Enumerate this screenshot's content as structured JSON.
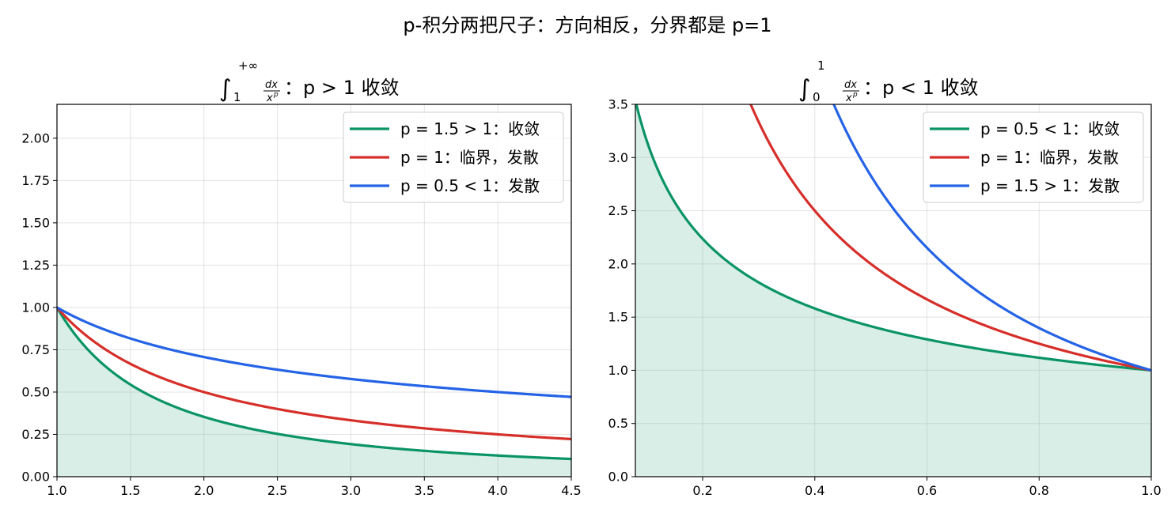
{
  "suptitle": "p-积分两把尺子：方向相反，分界都是 p=1",
  "colors": {
    "green": "#0a9464",
    "red": "#d62f2a",
    "blue": "#2563e6",
    "fill": "#d8eee6"
  },
  "chart_data": [
    {
      "type": "line",
      "title": {
        "integral_lower": "1",
        "integral_upper": "+∞",
        "frac_num": "dx",
        "frac_den": "x",
        "frac_den_exp": "p",
        "condition": "：p > 1 收敛"
      },
      "xlim": [
        1.0,
        4.5
      ],
      "ylim": [
        0.0,
        2.2
      ],
      "xticks": [
        "1.0",
        "1.5",
        "2.0",
        "2.5",
        "3.0",
        "3.5",
        "4.0",
        "4.5"
      ],
      "yticks": [
        "0.00",
        "0.25",
        "0.50",
        "0.75",
        "1.00",
        "1.25",
        "1.50",
        "1.75",
        "2.00"
      ],
      "grid": true,
      "legend_position": "top-right",
      "shaded_series": 0,
      "series": [
        {
          "name": "p = 1.5 > 1：收敛",
          "p": 1.5,
          "color": "#0a9464"
        },
        {
          "name": "p = 1：临界，发散",
          "p": 1.0,
          "color": "#d62f2a"
        },
        {
          "name": "p = 0.5 < 1：发散",
          "p": 0.5,
          "color": "#2563e6"
        }
      ]
    },
    {
      "type": "line",
      "title": {
        "integral_lower": "0",
        "integral_upper": "1",
        "frac_num": "dx",
        "frac_den": "x",
        "frac_den_exp": "p",
        "condition": "：p < 1 收敛"
      },
      "xlim": [
        0.08,
        1.0
      ],
      "ylim": [
        0.0,
        3.5
      ],
      "xticks": [
        "0.2",
        "0.4",
        "0.6",
        "0.8",
        "1.0"
      ],
      "yticks": [
        "0.0",
        "0.5",
        "1.0",
        "1.5",
        "2.0",
        "2.5",
        "3.0",
        "3.5"
      ],
      "grid": true,
      "legend_position": "top-right",
      "shaded_series": 0,
      "series": [
        {
          "name": "p = 0.5 < 1：收敛",
          "p": 0.5,
          "color": "#0a9464"
        },
        {
          "name": "p = 1：临界，发散",
          "p": 1.0,
          "color": "#d62f2a"
        },
        {
          "name": "p = 1.5 > 1：发散",
          "p": 1.5,
          "color": "#2563e6"
        }
      ]
    }
  ]
}
